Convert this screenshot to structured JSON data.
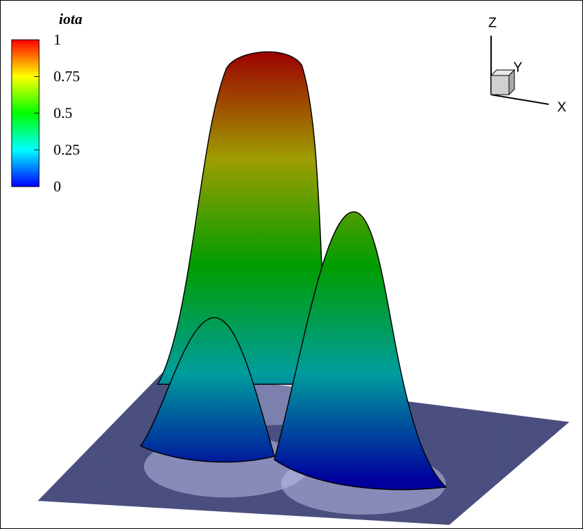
{
  "chart_data": {
    "type": "surface",
    "title": "iota",
    "clim": [
      0,
      1
    ],
    "cticks": [
      0,
      0.25,
      0.5,
      0.75,
      1
    ],
    "colormap": [
      "#0000ff",
      "#00ffff",
      "#00ff00",
      "#ffff00",
      "#ff0000"
    ],
    "xlabel": "X",
    "ylabel": "Y",
    "zlabel": "Z"
  }
}
